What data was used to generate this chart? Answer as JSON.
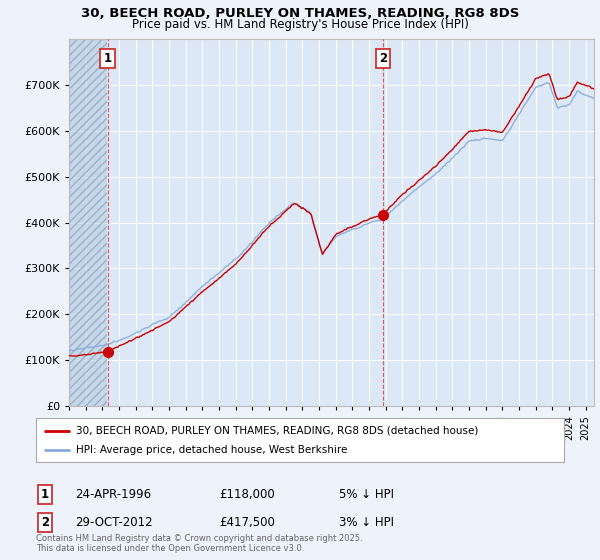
{
  "title1": "30, BEECH ROAD, PURLEY ON THAMES, READING, RG8 8DS",
  "title2": "Price paid vs. HM Land Registry's House Price Index (HPI)",
  "background_color": "#eef2fa",
  "plot_bg_color": "#dce8f5",
  "legend_label1": "30, BEECH ROAD, PURLEY ON THAMES, READING, RG8 8DS (detached house)",
  "legend_label2": "HPI: Average price, detached house, West Berkshire",
  "annotation1_label": "1",
  "annotation1_date": "24-APR-1996",
  "annotation1_price": "£118,000",
  "annotation1_hpi": "5% ↓ HPI",
  "annotation2_label": "2",
  "annotation2_date": "29-OCT-2012",
  "annotation2_price": "£417,500",
  "annotation2_hpi": "3% ↓ HPI",
  "footer": "Contains HM Land Registry data © Crown copyright and database right 2025.\nThis data is licensed under the Open Government Licence v3.0.",
  "ylim": [
    0,
    800000
  ],
  "yticks": [
    0,
    100000,
    200000,
    300000,
    400000,
    500000,
    600000,
    700000
  ],
  "ytick_labels": [
    "£0",
    "£100K",
    "£200K",
    "£300K",
    "£400K",
    "£500K",
    "£600K",
    "£700K"
  ],
  "sale1_year": 1996.31,
  "sale1_price": 118000,
  "sale2_year": 2012.83,
  "sale2_price": 417500,
  "line_color_red": "#cc0000",
  "line_color_blue": "#88aadd",
  "marker_color_red": "#cc0000",
  "grid_color": "#ffffff",
  "hatch_color": "#b8cce0"
}
